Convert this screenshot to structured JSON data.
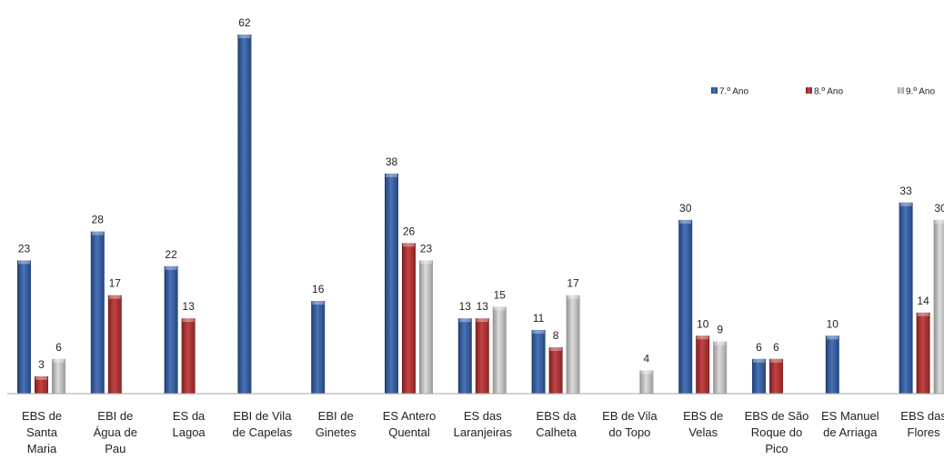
{
  "chart_data": {
    "type": "bar",
    "title": "",
    "xlabel": "",
    "ylabel": "",
    "ylim": [
      0,
      62
    ],
    "grid": false,
    "legend_position": "top-right",
    "categories": [
      [
        "EBS de",
        "Santa",
        "Maria"
      ],
      [
        "EBI de",
        "Água de",
        "Pau"
      ],
      [
        "ES da",
        "Lagoa"
      ],
      [
        "EBI de Vila",
        "de Capelas"
      ],
      [
        "EBI de",
        "Ginetes"
      ],
      [
        "ES Antero",
        "Quental"
      ],
      [
        "ES das",
        "Laranjeiras"
      ],
      [
        "EBS da",
        "Calheta"
      ],
      [
        "EB de Vila",
        "do Topo"
      ],
      [
        "EBS de",
        "Velas"
      ],
      [
        "EBS de São",
        "Roque do",
        "Pico"
      ],
      [
        "ES Manuel",
        "de Arriaga"
      ],
      [
        "EBS das",
        "Flores"
      ]
    ],
    "series": [
      {
        "name": "7.º Ano",
        "color": "#3a5e9c",
        "values": [
          23,
          28,
          22,
          62,
          16,
          38,
          13,
          11,
          null,
          30,
          6,
          10,
          33
        ]
      },
      {
        "name": "8.º Ano",
        "color": "#a83232",
        "values": [
          3,
          17,
          13,
          null,
          null,
          26,
          13,
          8,
          null,
          10,
          6,
          null,
          14
        ]
      },
      {
        "name": "9.º Ano",
        "color": "#b8b8b8",
        "values": [
          6,
          null,
          null,
          null,
          null,
          23,
          15,
          17,
          4,
          9,
          null,
          null,
          30
        ]
      }
    ]
  }
}
